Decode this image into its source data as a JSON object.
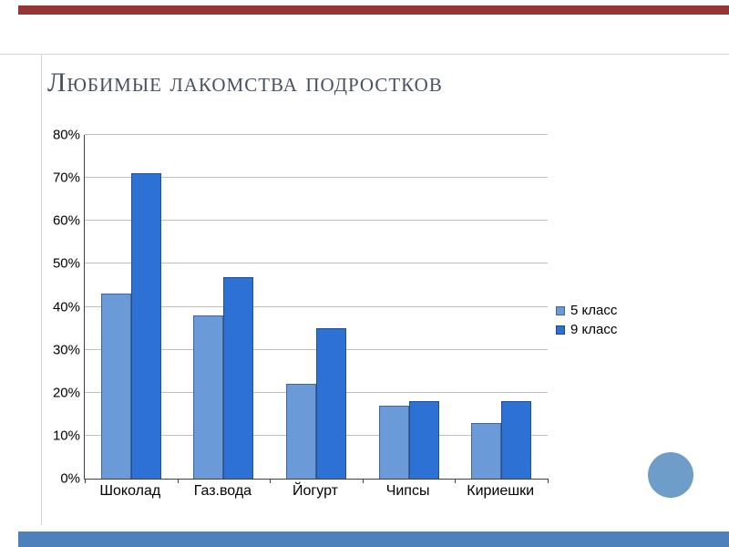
{
  "slide": {
    "title": "Любимые лакомства подростков"
  },
  "chart_data": {
    "type": "bar",
    "title": "Любимые лакомства подростков",
    "categories": [
      "Шоколад",
      "Газ.вода",
      "Йогурт",
      "Чипсы",
      "Кириешки"
    ],
    "series": [
      {
        "name": "5 класс",
        "color": "#6a9bd8",
        "values": [
          43,
          38,
          22,
          17,
          13
        ]
      },
      {
        "name": "9 класс",
        "color": "#2e71d4",
        "values": [
          71,
          47,
          35,
          18,
          18
        ]
      }
    ],
    "xlabel": "",
    "ylabel": "",
    "ylim": [
      0,
      80
    ],
    "ytick_step": 10,
    "ytick_labels": [
      "0%",
      "10%",
      "20%",
      "30%",
      "40%",
      "50%",
      "60%",
      "70%",
      "80%"
    ],
    "grid": true,
    "legend_position": "right"
  },
  "decor": {
    "top_bar_color": "#943634",
    "bottom_bar_color": "#4e80bc",
    "circle_color": "#6f9dc9",
    "rule_color": "#d5d5d5",
    "gridline_color": "#bfbfbf"
  }
}
